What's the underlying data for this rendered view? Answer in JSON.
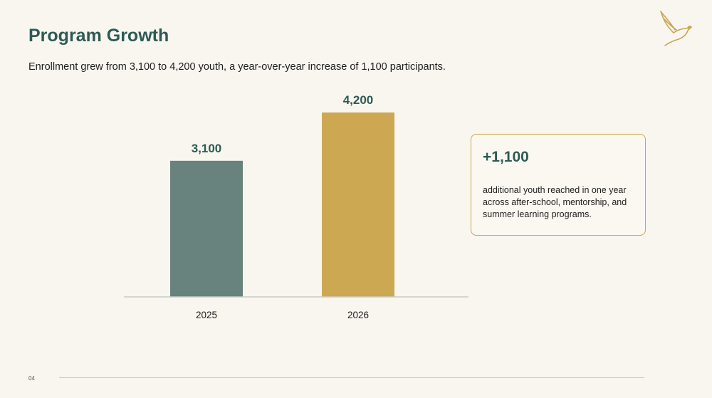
{
  "slide": {
    "title": "Program Growth",
    "subtitle": "Enrollment grew from 3,100 to 4,200 youth, a year-over-year increase of 1,100 participants.",
    "page_number": "04",
    "logo_icon": "bird-logo-icon"
  },
  "callout": {
    "value": "+1,100",
    "text": "additional youth reached in one year across after-school, mentorship, and summer learning programs."
  },
  "colors": {
    "bar_2025": "#68827d",
    "bar_2026": "#cda852",
    "accent_gold": "#c9a650",
    "title_teal": "#2e5a55"
  },
  "chart_data": {
    "type": "bar",
    "categories": [
      "2025",
      "2026"
    ],
    "values": [
      3100,
      4200
    ],
    "value_labels": [
      "3,100",
      "4,200"
    ],
    "title": "",
    "xlabel": "",
    "ylabel": "",
    "ylim": [
      0,
      4200
    ],
    "grid": false,
    "legend": "none"
  }
}
